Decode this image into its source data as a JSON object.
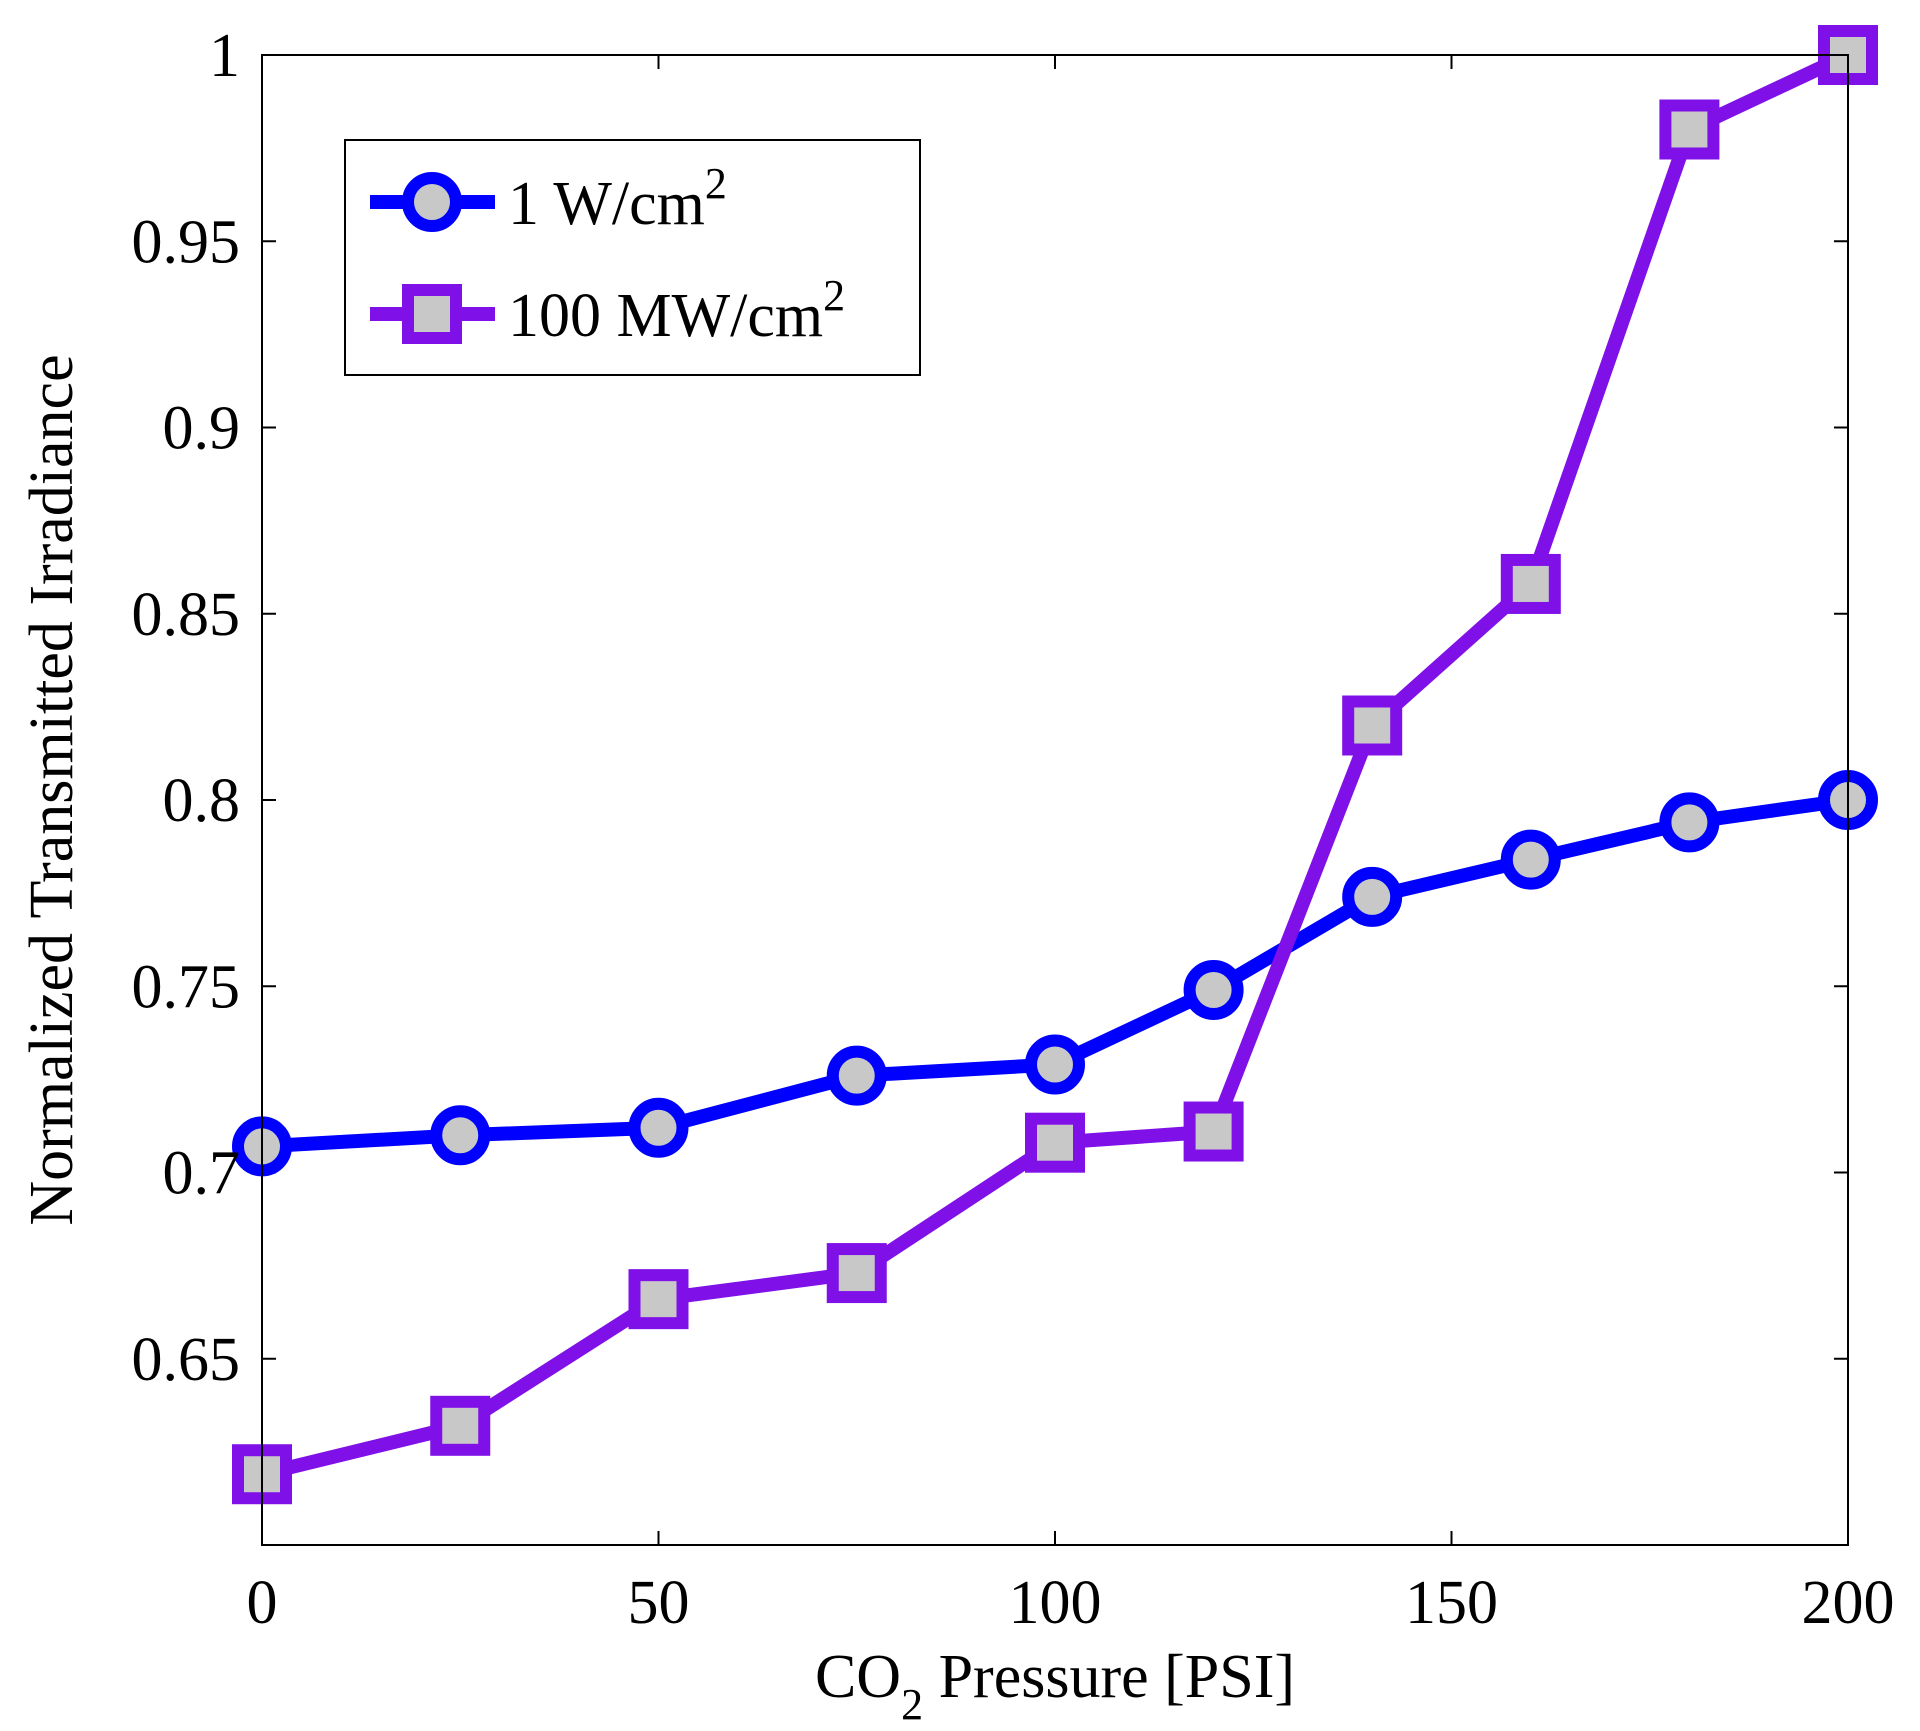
{
  "chart_data": {
    "type": "line",
    "title": "",
    "xlabel": {
      "prefix": "CO",
      "subscript": "2",
      "suffix": " Pressure [PSI]"
    },
    "ylabel": "Normalized Transmitted Irradiance",
    "xlim": [
      0,
      200
    ],
    "ylim": [
      0.6,
      1.0
    ],
    "xticks": [
      0,
      50,
      100,
      150,
      200
    ],
    "xtick_labels": [
      "0",
      "50",
      "100",
      "150",
      "200"
    ],
    "yticks": [
      0.65,
      0.7,
      0.75,
      0.8,
      0.85,
      0.9,
      0.95,
      1.0
    ],
    "ytick_labels": [
      "0.65",
      "0.7",
      "0.75",
      "0.8",
      "0.85",
      "0.9",
      "0.95",
      "1"
    ],
    "grid": false,
    "legend_position": "top-left",
    "series": [
      {
        "name": "1 W/cm",
        "name_superscript": "2",
        "color": "#0000ff",
        "marker": "circle",
        "marker_fill": "#c8c8c8",
        "x": [
          0,
          25,
          50,
          75,
          100,
          120,
          140,
          160,
          180,
          200
        ],
        "y": [
          0.707,
          0.71,
          0.712,
          0.726,
          0.729,
          0.749,
          0.774,
          0.784,
          0.794,
          0.8
        ]
      },
      {
        "name": "100 MW/cm",
        "name_superscript": "2",
        "color": "#7f10e8",
        "marker": "square",
        "marker_fill": "#c8c8c8",
        "x": [
          0,
          25,
          50,
          75,
          100,
          120,
          140,
          160,
          180,
          200
        ],
        "y": [
          0.619,
          0.632,
          0.666,
          0.673,
          0.708,
          0.711,
          0.82,
          0.858,
          0.98,
          1.0
        ]
      }
    ]
  }
}
